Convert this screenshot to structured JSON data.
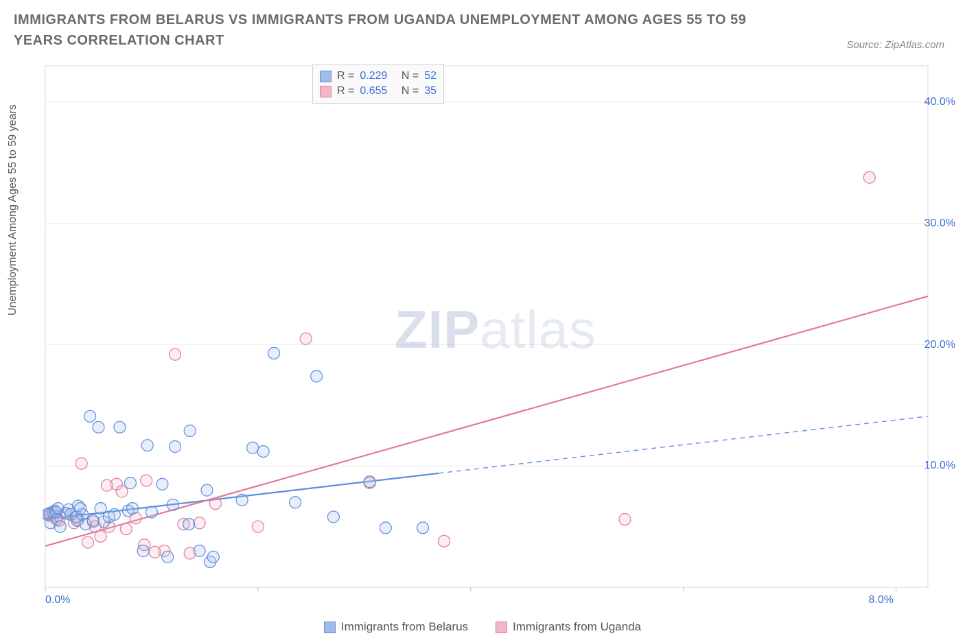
{
  "title": "IMMIGRANTS FROM BELARUS VS IMMIGRANTS FROM UGANDA UNEMPLOYMENT AMONG AGES 55 TO 59 YEARS CORRELATION CHART",
  "source": "Source: ZipAtlas.com",
  "ylabel": "Unemployment Among Ages 55 to 59 years",
  "watermark_a": "ZIP",
  "watermark_b": "atlas",
  "chart": {
    "type": "scatter",
    "background_color": "#ffffff",
    "plot_border_color": "#d9d9d9",
    "grid_color": "#ececec",
    "xlim": [
      0.0,
      8.3
    ],
    "ylim": [
      0.0,
      43.0
    ],
    "x_ticks": [
      0.0,
      2.0,
      4.0,
      6.0,
      8.0
    ],
    "x_tick_labels_shown": {
      "0.0": "0.0%",
      "8.0": "8.0%"
    },
    "y_ticks": [
      10.0,
      20.0,
      30.0,
      40.0
    ],
    "y_tick_labels": [
      "10.0%",
      "20.0%",
      "30.0%",
      "40.0%"
    ],
    "marker_radius": 8.5,
    "marker_stroke_width": 1.2,
    "marker_fill_opacity": 0.25,
    "trend_line_width": 2.2,
    "series": [
      {
        "name": "Immigrants from Belarus",
        "color_stroke": "#5d8edc",
        "color_fill": "#9ebde8",
        "R": 0.229,
        "N": 52,
        "trend": {
          "x1": 0.0,
          "y1": 5.6,
          "x2": 3.7,
          "y2": 9.4,
          "dash_x2": 8.3,
          "dash_y2": 14.1
        },
        "points": [
          [
            0.02,
            6.0
          ],
          [
            0.04,
            6.1
          ],
          [
            0.05,
            5.3
          ],
          [
            0.07,
            6.2
          ],
          [
            0.09,
            6.3
          ],
          [
            0.1,
            6.2
          ],
          [
            0.11,
            5.6
          ],
          [
            0.12,
            6.5
          ],
          [
            0.14,
            5.0
          ],
          [
            0.2,
            6.1
          ],
          [
            0.22,
            6.4
          ],
          [
            0.3,
            5.5
          ],
          [
            0.31,
            6.7
          ],
          [
            0.35,
            6.0
          ],
          [
            0.38,
            5.2
          ],
          [
            0.42,
            14.1
          ],
          [
            0.5,
            13.2
          ],
          [
            0.52,
            6.5
          ],
          [
            0.55,
            5.4
          ],
          [
            0.6,
            5.8
          ],
          [
            0.65,
            6.0
          ],
          [
            0.7,
            13.2
          ],
          [
            0.78,
            6.3
          ],
          [
            0.8,
            8.6
          ],
          [
            0.82,
            6.5
          ],
          [
            0.92,
            3.0
          ],
          [
            0.96,
            11.7
          ],
          [
            1.0,
            6.2
          ],
          [
            1.1,
            8.5
          ],
          [
            1.15,
            2.5
          ],
          [
            1.2,
            6.8
          ],
          [
            1.22,
            11.6
          ],
          [
            1.35,
            5.2
          ],
          [
            1.36,
            12.9
          ],
          [
            1.45,
            3.0
          ],
          [
            1.52,
            8.0
          ],
          [
            1.55,
            2.1
          ],
          [
            1.58,
            2.5
          ],
          [
            1.85,
            7.2
          ],
          [
            1.95,
            11.5
          ],
          [
            2.05,
            11.2
          ],
          [
            2.15,
            19.3
          ],
          [
            2.35,
            7.0
          ],
          [
            2.55,
            17.4
          ],
          [
            2.71,
            5.8
          ],
          [
            3.05,
            8.7
          ],
          [
            3.2,
            4.9
          ],
          [
            3.55,
            4.9
          ],
          [
            0.24,
            6.0
          ],
          [
            0.29,
            5.8
          ],
          [
            0.33,
            6.5
          ],
          [
            0.45,
            5.5
          ]
        ]
      },
      {
        "name": "Immigrants from Uganda",
        "color_stroke": "#e27a9a",
        "color_fill": "#f1b6c7",
        "R": 0.655,
        "N": 35,
        "trend": {
          "x1": 0.0,
          "y1": 3.4,
          "x2": 8.3,
          "y2": 24.0
        },
        "points": [
          [
            0.02,
            6.0
          ],
          [
            0.04,
            5.9
          ],
          [
            0.05,
            6.0
          ],
          [
            0.08,
            5.9
          ],
          [
            0.1,
            5.8
          ],
          [
            0.13,
            5.5
          ],
          [
            0.18,
            6.1
          ],
          [
            0.27,
            5.3
          ],
          [
            0.31,
            5.6
          ],
          [
            0.34,
            10.2
          ],
          [
            0.4,
            3.7
          ],
          [
            0.45,
            5.4
          ],
          [
            0.47,
            5.0
          ],
          [
            0.52,
            4.2
          ],
          [
            0.58,
            8.4
          ],
          [
            0.6,
            5.0
          ],
          [
            0.67,
            8.5
          ],
          [
            0.72,
            7.9
          ],
          [
            0.76,
            4.8
          ],
          [
            0.85,
            5.7
          ],
          [
            0.93,
            3.5
          ],
          [
            0.95,
            8.8
          ],
          [
            1.03,
            2.9
          ],
          [
            1.12,
            3.0
          ],
          [
            1.22,
            19.2
          ],
          [
            1.3,
            5.2
          ],
          [
            1.36,
            2.8
          ],
          [
            1.45,
            5.3
          ],
          [
            1.6,
            6.9
          ],
          [
            2.0,
            5.0
          ],
          [
            2.45,
            20.5
          ],
          [
            3.05,
            8.6
          ],
          [
            3.75,
            3.8
          ],
          [
            5.45,
            5.6
          ],
          [
            7.75,
            33.8
          ]
        ]
      }
    ]
  },
  "legend_top": [
    {
      "R_label": "R =",
      "R": "0.229",
      "N_label": "N =",
      "N": "52"
    },
    {
      "R_label": "R =",
      "R": "0.655",
      "N_label": "N =",
      "N": "35"
    }
  ],
  "legend_bottom": [
    "Immigrants from Belarus",
    "Immigrants from Uganda"
  ]
}
